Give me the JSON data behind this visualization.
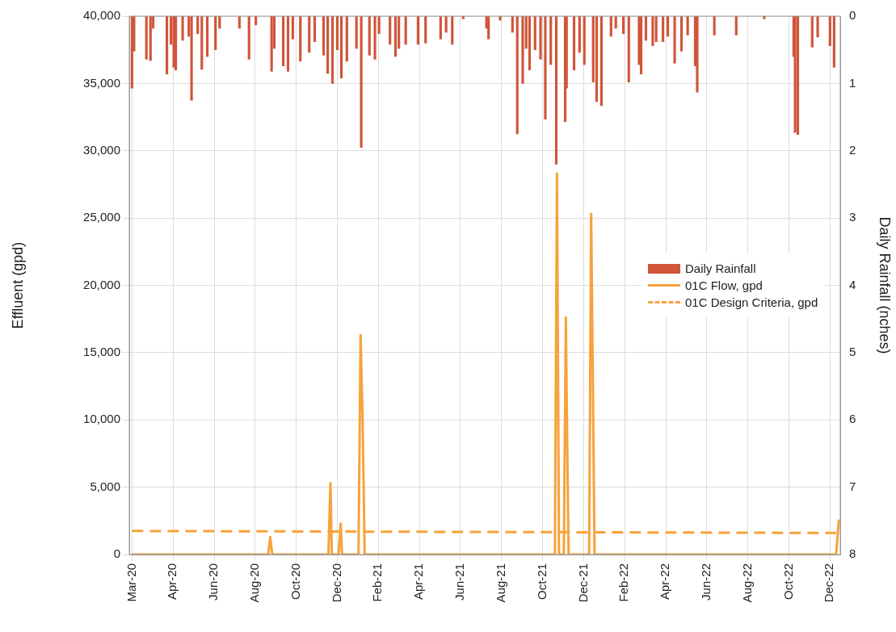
{
  "chart_data": {
    "type": "line",
    "ylabel": "Effluent (gpd)",
    "y2label": "Daily Rainfall (nches)",
    "xlim": [
      "2020-02-26",
      "2022-12-31"
    ],
    "xticks": [
      {
        "value": "2020-03-01",
        "label": "Mar-20"
      },
      {
        "value": "2020-04-30",
        "label": "Apr-20"
      },
      {
        "value": "2020-06-29",
        "label": "Jun-20"
      },
      {
        "value": "2020-08-28",
        "label": "Aug-20"
      },
      {
        "value": "2020-10-27",
        "label": "Oct-20"
      },
      {
        "value": "2020-12-26",
        "label": "Dec-20"
      },
      {
        "value": "2021-02-24",
        "label": "Feb-21"
      },
      {
        "value": "2021-04-25",
        "label": "Apr-21"
      },
      {
        "value": "2021-06-24",
        "label": "Jun-21"
      },
      {
        "value": "2021-08-23",
        "label": "Aug-21"
      },
      {
        "value": "2021-10-22",
        "label": "Oct-21"
      },
      {
        "value": "2021-12-21",
        "label": "Dec-21"
      },
      {
        "value": "2022-02-19",
        "label": "Feb-22"
      },
      {
        "value": "2022-04-20",
        "label": "Apr-22"
      },
      {
        "value": "2022-06-19",
        "label": "Jun-22"
      },
      {
        "value": "2022-08-18",
        "label": "Aug-22"
      },
      {
        "value": "2022-10-17",
        "label": "Oct-22"
      },
      {
        "value": "2022-12-16",
        "label": "Dec-22"
      }
    ],
    "ylim": [
      0,
      40000
    ],
    "yticks": [
      {
        "value": 0,
        "label": "0"
      },
      {
        "value": 5000,
        "label": "5,000"
      },
      {
        "value": 10000,
        "label": "10,000"
      },
      {
        "value": 15000,
        "label": "15,000"
      },
      {
        "value": 20000,
        "label": "20,000"
      },
      {
        "value": 25000,
        "label": "25,000"
      },
      {
        "value": 30000,
        "label": "30,000"
      },
      {
        "value": 35000,
        "label": "35,000"
      },
      {
        "value": 40000,
        "label": "40,000"
      }
    ],
    "y2lim": [
      8,
      0
    ],
    "y2ticks": [
      0,
      1,
      2,
      3,
      4,
      5,
      6,
      7,
      8
    ],
    "grid": true,
    "legend": "right",
    "marker": "none",
    "series": [
      {
        "name": "Daily Rainfall",
        "type": "bar",
        "axis": "y2",
        "color": "#d0553a",
        "x": [
          "2020-03-01",
          "2020-03-04",
          "2020-03-22",
          "2020-03-28",
          "2020-04-01",
          "2020-04-21",
          "2020-04-27",
          "2020-05-01",
          "2020-05-04",
          "2020-05-14",
          "2020-05-23",
          "2020-05-27",
          "2020-06-05",
          "2020-06-11",
          "2020-06-19",
          "2020-07-01",
          "2020-07-07",
          "2020-08-05",
          "2020-08-19",
          "2020-08-29",
          "2020-09-21",
          "2020-09-25",
          "2020-10-08",
          "2020-10-15",
          "2020-10-22",
          "2020-11-02",
          "2020-11-15",
          "2020-11-23",
          "2020-12-06",
          "2020-12-12",
          "2020-12-19",
          "2020-12-26",
          "2021-01-01",
          "2021-01-09",
          "2021-01-23",
          "2021-01-30",
          "2021-02-11",
          "2021-02-19",
          "2021-02-25",
          "2021-03-13",
          "2021-03-21",
          "2021-03-26",
          "2021-04-05",
          "2021-04-23",
          "2021-05-04",
          "2021-05-26",
          "2021-06-03",
          "2021-06-12",
          "2021-06-28",
          "2021-08-01",
          "2021-08-04",
          "2021-08-21",
          "2021-09-08",
          "2021-09-15",
          "2021-09-23",
          "2021-09-28",
          "2021-10-03",
          "2021-10-11",
          "2021-10-19",
          "2021-10-26",
          "2021-11-03",
          "2021-11-11",
          "2021-11-24",
          "2021-11-26",
          "2021-12-07",
          "2021-12-15",
          "2021-12-22",
          "2022-01-04",
          "2022-01-09",
          "2022-01-16",
          "2022-01-30",
          "2022-02-06",
          "2022-02-17",
          "2022-02-25",
          "2022-03-12",
          "2022-03-15",
          "2022-03-22",
          "2022-04-01",
          "2022-04-06",
          "2022-04-16",
          "2022-04-23",
          "2022-05-03",
          "2022-05-13",
          "2022-05-22",
          "2022-06-02",
          "2022-06-05",
          "2022-06-30",
          "2022-08-01",
          "2022-09-11",
          "2022-10-24",
          "2022-10-26",
          "2022-10-30",
          "2022-11-20",
          "2022-11-28",
          "2022-12-16",
          "2022-12-22"
        ],
        "values": [
          1.07,
          0.52,
          0.64,
          0.66,
          0.18,
          0.86,
          0.42,
          0.76,
          0.8,
          0.36,
          0.3,
          1.25,
          0.26,
          0.79,
          0.6,
          0.5,
          0.18,
          0.18,
          0.64,
          0.13,
          0.82,
          0.48,
          0.74,
          0.82,
          0.34,
          0.67,
          0.54,
          0.38,
          0.58,
          0.85,
          1.0,
          0.5,
          0.92,
          0.67,
          0.48,
          1.95,
          0.58,
          0.64,
          0.26,
          0.42,
          0.6,
          0.48,
          0.42,
          0.42,
          0.4,
          0.34,
          0.24,
          0.42,
          0.04,
          0.18,
          0.34,
          0.06,
          0.24,
          1.75,
          1.0,
          0.48,
          0.8,
          0.5,
          0.64,
          1.53,
          0.72,
          2.2,
          1.57,
          1.07,
          0.8,
          0.54,
          0.72,
          0.98,
          1.27,
          1.33,
          0.3,
          0.18,
          0.26,
          0.98,
          0.72,
          0.86,
          0.36,
          0.44,
          0.38,
          0.38,
          0.3,
          0.7,
          0.52,
          0.28,
          0.74,
          1.13,
          0.28,
          0.28,
          0.04,
          0.6,
          1.73,
          1.76,
          0.46,
          0.31,
          0.44,
          0.76
        ]
      },
      {
        "name": "01C Flow, gpd",
        "color": "#f7a23b",
        "x": [
          "2020-03-01",
          "2020-09-16",
          "2020-09-19",
          "2020-09-22",
          "2020-12-13",
          "2020-12-16",
          "2020-12-18",
          "2020-12-28",
          "2020-12-31",
          "2021-01-02",
          "2021-01-26",
          "2021-01-29",
          "2021-02-01",
          "2021-02-04",
          "2021-11-09",
          "2021-11-12",
          "2021-11-15",
          "2021-11-22",
          "2021-11-25",
          "2021-11-27",
          "2021-11-29",
          "2021-12-29",
          "2022-01-01",
          "2022-01-04",
          "2022-01-06",
          "2022-12-25",
          "2022-12-29"
        ],
        "values": [
          0,
          0,
          1300,
          0,
          0,
          5300,
          0,
          0,
          2300,
          0,
          0,
          16300,
          10000,
          0,
          0,
          28300,
          0,
          0,
          17600,
          8200,
          0,
          0,
          25300,
          10000,
          0,
          0,
          2600
        ]
      },
      {
        "name": "01C Design Criteria, gpd",
        "line_style": "dashed",
        "color": "#f7a23b",
        "x": [
          "2020-03-01",
          "2022-12-25"
        ],
        "values": [
          1750,
          1600
        ]
      }
    ]
  }
}
